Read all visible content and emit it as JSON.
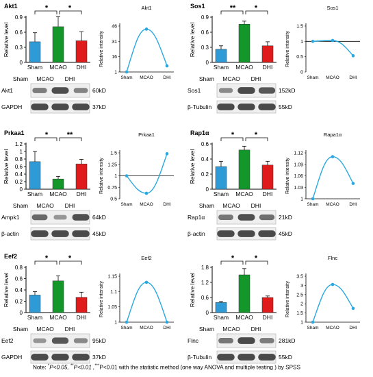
{
  "note": {
    "prefix": "Note: ",
    "s1": "*",
    "t1": "P<0.05, ",
    "s2": "**",
    "t2": "P<0.01 ,",
    "s3": "***",
    "t3": "P<0.01 with the statistic method (one way ANOVA and multiple testing ) by SPSS"
  },
  "colors": {
    "Sham": "#2e9bd6",
    "MCAO": "#13962a",
    "DHI": "#e01b1b",
    "line": "#29a8e0",
    "blot": "#3a3a3a"
  },
  "chart_data": [
    {
      "type": "bar",
      "title": "Akt1",
      "ylabel": "Relative level",
      "categories": [
        "Sham",
        "MCAO",
        "DHI"
      ],
      "values": [
        0.41,
        0.71,
        0.43
      ],
      "errors": [
        0.18,
        0.2,
        0.18
      ],
      "ylim": [
        0,
        0.9
      ],
      "yticks": [
        "0",
        "0.3",
        "0.6",
        "0.9"
      ],
      "significance": [
        {
          "from": "Sham",
          "to": "MCAO",
          "label": "*"
        },
        {
          "from": "MCAO",
          "to": "DHI",
          "label": "*"
        }
      ],
      "blot_header": [
        "Sham",
        "MCAO",
        "DHI"
      ],
      "blots": [
        {
          "label": "Akt1",
          "size": "60kD",
          "intensity": [
            0.55,
            0.92,
            0.5
          ]
        },
        {
          "label": "GAPDH",
          "size": "37kD",
          "intensity": [
            0.95,
            0.95,
            0.95
          ]
        }
      ],
      "intensity": {
        "title": "Akt1",
        "ylabel": "Relative intensity",
        "categories": [
          "Sham",
          "MCAO",
          "DHI"
        ],
        "values": [
          1,
          43,
          7
        ],
        "yticks": [
          "1",
          "16",
          "31",
          "46"
        ],
        "ylim": [
          1,
          46
        ]
      }
    },
    {
      "type": "bar",
      "title": "Sos1",
      "ylabel": "Relative level",
      "categories": [
        "Sham",
        "MCAO",
        "DHI"
      ],
      "values": [
        0.26,
        0.76,
        0.33
      ],
      "errors": [
        0.07,
        0.06,
        0.08
      ],
      "ylim": [
        0,
        0.9
      ],
      "yticks": [
        "0",
        "0.3",
        "0.6",
        "0.9"
      ],
      "significance": [
        {
          "from": "Sham",
          "to": "MCAO",
          "label": "**"
        },
        {
          "from": "MCAO",
          "to": "DHI",
          "label": "*"
        }
      ],
      "blot_header": [
        "Sham",
        "MCAO",
        "DHI"
      ],
      "blots": [
        {
          "label": "Sos1",
          "size": "152kD",
          "intensity": [
            0.45,
            0.95,
            0.85
          ]
        },
        {
          "label": "β-Tubulin",
          "size": "55kD",
          "intensity": [
            0.95,
            0.95,
            0.95
          ]
        }
      ],
      "intensity": {
        "title": "Sos1",
        "ylabel": "Relative intensity",
        "categories": [
          "Sham",
          "MCAO",
          "DHI"
        ],
        "values": [
          1,
          1.03,
          0.53
        ],
        "yticks": [
          "0",
          "0.5",
          "1",
          "1.5"
        ],
        "ylim": [
          0,
          1.5
        ]
      }
    },
    {
      "type": "bar",
      "title": "Prkaa1",
      "ylabel": "Relative level",
      "categories": [
        "Sham",
        "MCAO",
        "DHI"
      ],
      "values": [
        0.73,
        0.27,
        0.67
      ],
      "errors": [
        0.27,
        0.07,
        0.12
      ],
      "ylim": [
        0,
        1.2
      ],
      "yticks": [
        "0",
        "0.2",
        "0.4",
        "0.6",
        "0.8",
        "1",
        "1.2"
      ],
      "significance": [
        {
          "from": "Sham",
          "to": "MCAO",
          "label": "*"
        },
        {
          "from": "MCAO",
          "to": "DHI",
          "label": "**"
        }
      ],
      "blot_header": [
        "Sham",
        "MCAO",
        "DHI"
      ],
      "blots": [
        {
          "label": "Ampk1",
          "size": "64kD",
          "intensity": [
            0.7,
            0.35,
            0.9
          ]
        },
        {
          "label": "β-actin",
          "size": "45kD",
          "intensity": [
            0.95,
            0.95,
            0.95
          ]
        }
      ],
      "intensity": {
        "title": "Prkaa1",
        "ylabel": "Relative intensity",
        "categories": [
          "Sham",
          "MCAO",
          "DHI"
        ],
        "values": [
          1,
          0.62,
          1.48
        ],
        "yticks": [
          "0.5",
          "0.75",
          "1",
          "1.25",
          "1.5"
        ],
        "ylim": [
          0.5,
          1.5
        ]
      }
    },
    {
      "type": "bar",
      "title": "Rap1α",
      "ylabel": "Relative level",
      "categories": [
        "Sham",
        "MCAO",
        "DHI"
      ],
      "values": [
        0.3,
        0.52,
        0.32
      ],
      "errors": [
        0.07,
        0.05,
        0.05
      ],
      "ylim": [
        0,
        0.6
      ],
      "yticks": [
        "0",
        "0.2",
        "0.4",
        "0.6"
      ],
      "significance": [
        {
          "from": "Sham",
          "to": "MCAO",
          "label": "*"
        },
        {
          "from": "MCAO",
          "to": "DHI",
          "label": "*"
        }
      ],
      "blot_header": [
        "Sham",
        "MCAO",
        "DHI"
      ],
      "blots": [
        {
          "label": "Rap1α",
          "size": "21kD",
          "intensity": [
            0.6,
            0.9,
            0.65
          ]
        },
        {
          "label": "β-actin",
          "size": "45kD",
          "intensity": [
            0.95,
            0.95,
            0.95
          ]
        }
      ],
      "intensity": {
        "title": "Rapa1α",
        "ylabel": "Relative intensity",
        "categories": [
          "Sham",
          "MCAO",
          "DHI"
        ],
        "values": [
          1,
          1.11,
          1.04
        ],
        "yticks": [
          "1",
          "1.03",
          "1.06",
          "1.09",
          "1.12"
        ],
        "ylim": [
          1,
          1.12
        ]
      }
    },
    {
      "type": "bar",
      "title": "Eef2",
      "ylabel": "Relative level",
      "categories": [
        "Sham",
        "MCAO",
        "DHI"
      ],
      "values": [
        0.31,
        0.56,
        0.27
      ],
      "errors": [
        0.06,
        0.09,
        0.09
      ],
      "ylim": [
        0,
        0.8
      ],
      "yticks": [
        "0",
        "0.2",
        "0.4",
        "0.6",
        "0.8"
      ],
      "significance": [
        {
          "from": "Sham",
          "to": "MCAO",
          "label": "*"
        },
        {
          "from": "MCAO",
          "to": "DHI",
          "label": "*"
        }
      ],
      "blot_header": [
        "Sham",
        "MCAO",
        "DHI"
      ],
      "blots": [
        {
          "label": "Eef2",
          "size": "95kD",
          "intensity": [
            0.35,
            0.85,
            0.45
          ]
        },
        {
          "label": "GAPDH",
          "size": "37kD",
          "intensity": [
            0.95,
            0.95,
            0.95
          ]
        }
      ],
      "intensity": {
        "title": "Eef2",
        "ylabel": "Relative intensity",
        "categories": [
          "Sham",
          "MCAO",
          "DHI"
        ],
        "values": [
          1,
          1.13,
          1
        ],
        "yticks": [
          "1",
          "1.05",
          "1.1",
          "1.15"
        ],
        "ylim": [
          1,
          1.15
        ]
      }
    },
    {
      "type": "bar",
      "title": "",
      "ylabel": "Relative level",
      "categories": [
        "Sham",
        "MCAO",
        "DHI"
      ],
      "values": [
        0.4,
        1.5,
        0.6
      ],
      "errors": [
        0.04,
        0.25,
        0.06
      ],
      "ylim": [
        0,
        1.8
      ],
      "yticks": [
        "0",
        "0.6",
        "1.2",
        "1.8"
      ],
      "significance": [
        {
          "from": "Sham",
          "to": "MCAO",
          "label": "*"
        },
        {
          "from": "MCAO",
          "to": "DHI",
          "label": "*"
        }
      ],
      "blot_header": [
        "Sham",
        "MCAO",
        "DHI"
      ],
      "blots": [
        {
          "label": "Flnc",
          "size": "281kD",
          "intensity": [
            0.6,
            0.95,
            0.55
          ]
        },
        {
          "label": "β-Tubulin",
          "size": "55kD",
          "intensity": [
            0.95,
            0.95,
            0.95
          ]
        }
      ],
      "intensity": {
        "title": "Flnc",
        "ylabel": "Relative intensity",
        "categories": [
          "Sham",
          "MCAO",
          "DHI"
        ],
        "values": [
          1,
          3.05,
          1.75
        ],
        "yticks": [
          "1",
          "1.5",
          "2",
          "2.5",
          "3",
          "3.5"
        ],
        "ylim": [
          1,
          3.5
        ]
      }
    }
  ]
}
